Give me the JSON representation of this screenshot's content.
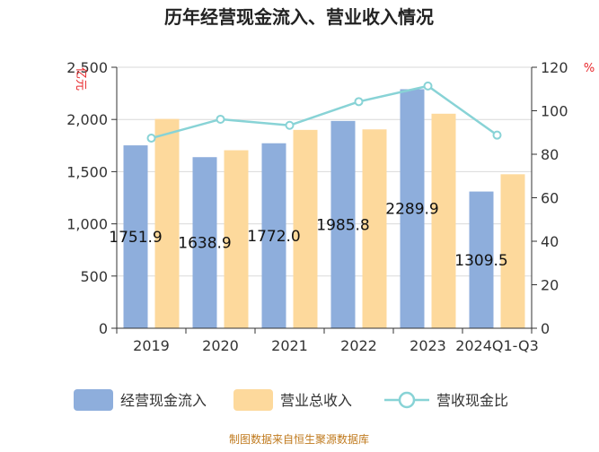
{
  "chart_data": {
    "type": "bar",
    "title": "历年经营现金流入、营业收入情况",
    "categories": [
      "2019",
      "2020",
      "2021",
      "2022",
      "2023",
      "2024Q1-Q3"
    ],
    "y_left_label": "亿元",
    "y_right_label": "%",
    "y_left_ticks": [
      "0",
      "500",
      "1,000",
      "1,500",
      "2,000",
      "2,500"
    ],
    "y_right_ticks": [
      "0",
      "20",
      "40",
      "60",
      "80",
      "100",
      "120"
    ],
    "ylim_left": [
      0,
      2500
    ],
    "ylim_right": [
      0,
      120
    ],
    "series": [
      {
        "name": "经营现金流入",
        "type": "bar",
        "axis": "left",
        "values": [
          1751.9,
          1638.9,
          1772.0,
          1985.8,
          2289.9,
          1309.5
        ],
        "labels": [
          "1751.9",
          "1638.9",
          "1772.0",
          "1985.8",
          "2289.9",
          "1309.5"
        ]
      },
      {
        "name": "营业总收入",
        "type": "bar",
        "axis": "left",
        "values": [
          2005,
          1705,
          1900,
          1905,
          2055,
          1475
        ]
      },
      {
        "name": "营收现金比",
        "type": "line",
        "axis": "right",
        "values": [
          87.4,
          96.1,
          93.3,
          104.2,
          111.4,
          88.8
        ]
      }
    ],
    "colors": {
      "cash_inflow": "#8eaedc",
      "revenue": "#fdd99c",
      "ratio": "#88d3d6",
      "axis": "#333333",
      "grid": "#d9d9d9",
      "unit": "#e8272b"
    },
    "legend_position": "bottom",
    "grid": true
  },
  "source": "制图数据来自恒生聚源数据库"
}
